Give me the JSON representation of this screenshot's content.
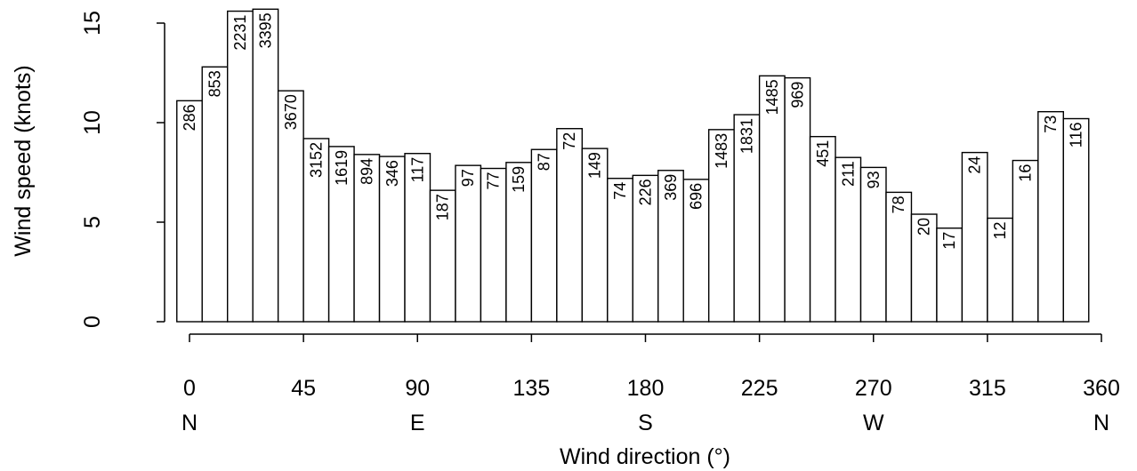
{
  "chart_data": {
    "type": "bar",
    "xlabel": "Wind direction (°)",
    "ylabel": "Wind speed (knots)",
    "xlim": [
      0,
      360
    ],
    "ylim": [
      0,
      15
    ],
    "x_ticks": [
      0,
      45,
      90,
      135,
      180,
      225,
      270,
      315,
      360
    ],
    "x_tick_labels": [
      "0",
      "45",
      "90",
      "135",
      "180",
      "225",
      "270",
      "315",
      "360"
    ],
    "compass_ticks": [
      0,
      90,
      180,
      270,
      360
    ],
    "compass_labels": [
      "N",
      "E",
      "S",
      "W",
      "N"
    ],
    "y_ticks": [
      0,
      5,
      10,
      15
    ],
    "y_tick_labels": [
      "0",
      "5",
      "10",
      "15"
    ],
    "grid": false,
    "bin_width": 10,
    "bins": [
      {
        "center": 0,
        "value": 11.1,
        "count": "286"
      },
      {
        "center": 10,
        "value": 12.8,
        "count": "853"
      },
      {
        "center": 20,
        "value": 15.6,
        "count": "2231"
      },
      {
        "center": 30,
        "value": 15.7,
        "count": "3395"
      },
      {
        "center": 40,
        "value": 11.6,
        "count": "3670"
      },
      {
        "center": 50,
        "value": 9.2,
        "count": "3152"
      },
      {
        "center": 60,
        "value": 8.8,
        "count": "1619"
      },
      {
        "center": 70,
        "value": 8.4,
        "count": "894"
      },
      {
        "center": 80,
        "value": 8.3,
        "count": "346"
      },
      {
        "center": 90,
        "value": 8.45,
        "count": "117"
      },
      {
        "center": 100,
        "value": 6.6,
        "count": "187"
      },
      {
        "center": 110,
        "value": 7.85,
        "count": "97"
      },
      {
        "center": 120,
        "value": 7.7,
        "count": "77"
      },
      {
        "center": 130,
        "value": 8.0,
        "count": "159"
      },
      {
        "center": 140,
        "value": 8.65,
        "count": "87"
      },
      {
        "center": 150,
        "value": 9.7,
        "count": "72"
      },
      {
        "center": 160,
        "value": 8.7,
        "count": "149"
      },
      {
        "center": 170,
        "value": 7.2,
        "count": "74"
      },
      {
        "center": 180,
        "value": 7.35,
        "count": "226"
      },
      {
        "center": 190,
        "value": 7.6,
        "count": "369"
      },
      {
        "center": 200,
        "value": 7.15,
        "count": "696"
      },
      {
        "center": 210,
        "value": 9.65,
        "count": "1483"
      },
      {
        "center": 220,
        "value": 10.4,
        "count": "1831"
      },
      {
        "center": 230,
        "value": 12.35,
        "count": "1485"
      },
      {
        "center": 240,
        "value": 12.25,
        "count": "969"
      },
      {
        "center": 250,
        "value": 9.3,
        "count": "451"
      },
      {
        "center": 260,
        "value": 8.25,
        "count": "211"
      },
      {
        "center": 270,
        "value": 7.75,
        "count": "93"
      },
      {
        "center": 280,
        "value": 6.5,
        "count": "78"
      },
      {
        "center": 290,
        "value": 5.4,
        "count": "20"
      },
      {
        "center": 300,
        "value": 4.7,
        "count": "17"
      },
      {
        "center": 310,
        "value": 8.5,
        "count": "24"
      },
      {
        "center": 320,
        "value": 5.2,
        "count": "12"
      },
      {
        "center": 330,
        "value": 8.1,
        "count": "16"
      },
      {
        "center": 340,
        "value": 10.55,
        "count": "73"
      },
      {
        "center": 350,
        "value": 10.2,
        "count": "116"
      }
    ]
  }
}
